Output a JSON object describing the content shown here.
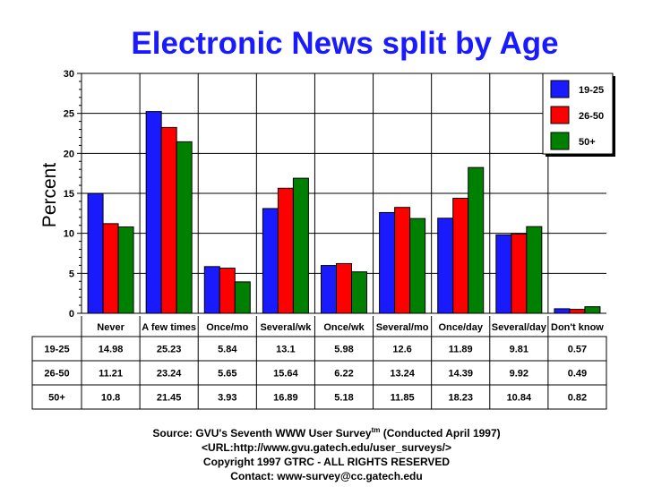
{
  "chart_data": {
    "type": "bar",
    "title": "Electronic News split by Age",
    "ylabel": "Percent",
    "xlabel": "",
    "ylim": [
      0,
      30
    ],
    "yticks": [
      0,
      5,
      10,
      15,
      20,
      25,
      30
    ],
    "grid": true,
    "legend_position": "top-right",
    "categories": [
      "Never",
      "A few times",
      "Once/mo",
      "Several/wk",
      "Once/wk",
      "Several/mo",
      "Once/day",
      "Several/day",
      "Don't know"
    ],
    "series": [
      {
        "name": "19-25",
        "color": "#1a1aff",
        "values": [
          14.98,
          25.23,
          5.84,
          13.1,
          5.98,
          12.6,
          11.89,
          9.81,
          0.57
        ]
      },
      {
        "name": "26-50",
        "color": "#ff0000",
        "values": [
          11.21,
          23.24,
          5.65,
          15.64,
          6.22,
          13.24,
          14.39,
          9.92,
          0.49
        ]
      },
      {
        "name": "50+",
        "color": "#008000",
        "values": [
          10.8,
          21.45,
          3.93,
          16.89,
          5.18,
          11.85,
          18.23,
          10.84,
          0.82
        ]
      }
    ]
  },
  "footer": {
    "source_prefix": "Source: GVU's Seventh WWW User Survey",
    "source_sup": "tm",
    "source_suffix": " (Conducted April 1997)",
    "url": "<URL:http://www.gvu.gatech.edu/user_surveys/>",
    "copyright": "Copyright 1997 GTRC - ALL RIGHTS RESERVED",
    "contact": "Contact: www-survey@cc.gatech.edu"
  }
}
